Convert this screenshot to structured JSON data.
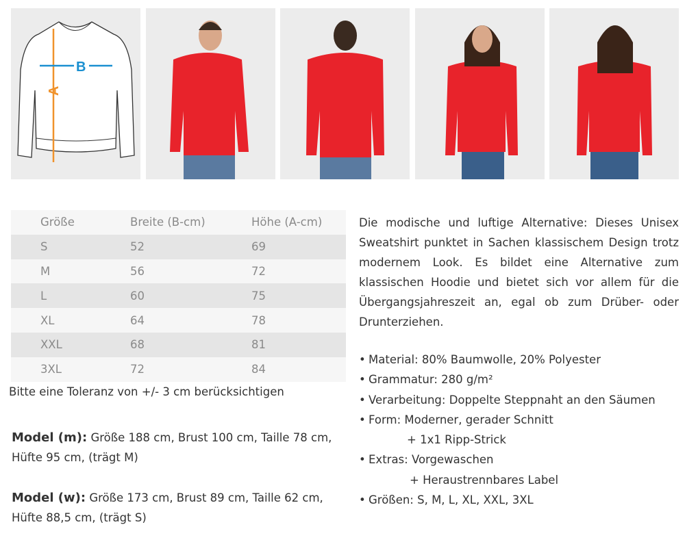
{
  "images": [
    {
      "name": "size-diagram",
      "labels": {
        "width": "B",
        "height": "A"
      },
      "colors": {
        "width_arrow": "#1a8fd0",
        "height_arrow": "#f0922b"
      }
    },
    {
      "name": "model-m-front"
    },
    {
      "name": "model-m-back"
    },
    {
      "name": "model-w-front"
    },
    {
      "name": "model-w-back"
    }
  ],
  "shirt_color": "#e8232b",
  "size_table": {
    "headers": [
      "Größe",
      "Breite (B-cm)",
      "Höhe (A-cm)"
    ],
    "rows": [
      [
        "S",
        "52",
        "69"
      ],
      [
        "M",
        "56",
        "72"
      ],
      [
        "L",
        "60",
        "75"
      ],
      [
        "XL",
        "64",
        "78"
      ],
      [
        "XXL",
        "68",
        "81"
      ],
      [
        "3XL",
        "72",
        "84"
      ]
    ]
  },
  "tolerance": "Bitte eine Toleranz von +/- 3 cm berücksichtigen",
  "model_m": {
    "label": "Model (m):",
    "line1": " Größe 188 cm, Brust 100 cm, Taille 78 cm,",
    "line2": "Hüfte 95 cm, (trägt M)"
  },
  "model_w": {
    "label": "Model (w):",
    "line1": " Größe 173 cm, Brust 89 cm, Taille 62 cm,",
    "line2": "Hüfte 88,5 cm, (trägt S)"
  },
  "description": "Die modische und luftige Alternative: Dieses Unisex Sweatshirt punktet in Sachen klassischem Design trotz modernem Look. Es bildet eine Alternative zum klassischen Hoodie und bietet sich vor allem für die Übergangsjahreszeit an, egal ob zum Drüber- oder Drunterziehen.",
  "features": [
    {
      "text": "Material: 80% Baumwolle, 20% Polyester"
    },
    {
      "text": "Grammatur: 280 g/m²"
    },
    {
      "text": "Verarbeitung: Doppelte Steppnaht an den Säumen"
    },
    {
      "text": "Form: Moderner, gerader Schnitt",
      "cont": "+ 1x1 Ripp-Strick"
    },
    {
      "text": "Extras: Vorgewaschen",
      "cont": "+ Heraustrennbares Label"
    },
    {
      "text": "Größen:  S, M, L, XL, XXL, 3XL"
    }
  ]
}
